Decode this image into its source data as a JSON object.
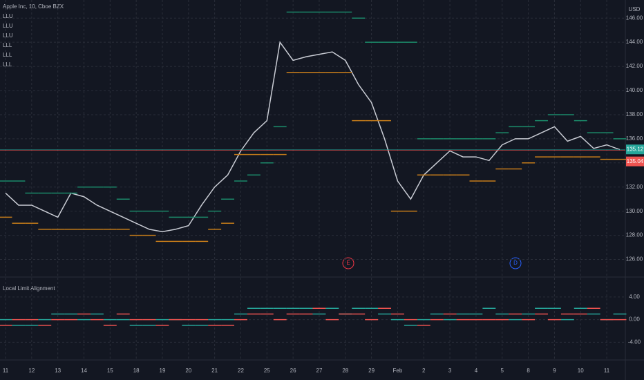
{
  "chart_data": {
    "type": "line",
    "title": "Apple Inc, 10, Cboe BZX",
    "currency": "USD",
    "study_labels": [
      "LLU",
      "LLU",
      "LLU",
      "LLL",
      "LLL",
      "LLL"
    ],
    "events": [
      "E",
      "D"
    ],
    "categories": [
      "11",
      null,
      "12",
      null,
      "13",
      null,
      "14",
      null,
      "15",
      null,
      "18",
      null,
      "19",
      null,
      "20",
      null,
      "21",
      null,
      "22",
      null,
      "25",
      null,
      "26",
      null,
      "27",
      null,
      "28",
      null,
      "29",
      null,
      "Feb",
      null,
      "2",
      null,
      "3",
      null,
      "4",
      null,
      "5",
      null,
      "8",
      null,
      "9",
      null,
      "10",
      null,
      "11",
      null
    ],
    "ylim": [
      124.6,
      147.5
    ],
    "yticks": [
      {
        "value": 126,
        "label": "126.00"
      },
      {
        "value": 128,
        "label": "128.00"
      },
      {
        "value": 130,
        "label": "130.00"
      },
      {
        "value": 132,
        "label": "132.00"
      },
      {
        "value": 134,
        "label": "134.00"
      },
      {
        "value": 136,
        "label": "136.00"
      },
      {
        "value": 138,
        "label": "138.00"
      },
      {
        "value": 140,
        "label": "140.00"
      },
      {
        "value": 142,
        "label": "142.00"
      },
      {
        "value": 144,
        "label": "144.00"
      },
      {
        "value": 146,
        "label": "146.00"
      }
    ],
    "grid": true,
    "price_tags": [
      {
        "value": 135.12,
        "label": "135.12",
        "color": "#26a69a"
      },
      {
        "value": 135.04,
        "label": "135.04",
        "color": "#ef5350"
      }
    ],
    "series": [
      {
        "color": "#c9ccd4",
        "values": [
          131.5,
          130.5,
          130.5,
          130.0,
          129.5,
          131.5,
          131.2,
          130.5,
          130.0,
          129.5,
          129.0,
          128.5,
          128.3,
          128.5,
          128.8,
          130.5,
          132.0,
          133.0,
          135.0,
          136.5,
          137.5,
          144.0,
          142.5,
          142.8,
          143.0,
          143.2,
          142.5,
          140.5,
          139.0,
          136.0,
          132.5,
          131.0,
          133.0,
          134.0,
          135.0,
          134.5,
          134.5,
          134.2,
          135.5,
          136.0,
          136.0,
          136.5,
          137.0,
          135.8,
          136.2,
          135.2,
          135.5,
          135.1
        ]
      },
      {
        "color": "#1b8a6a",
        "values": [
          132.5,
          132.5,
          131.5,
          131.5,
          131.5,
          131.5,
          132.0,
          132.0,
          132.0,
          131.0,
          130.0,
          130.0,
          130.0,
          129.5,
          129.5,
          129.5,
          130.0,
          131.0,
          132.5,
          133.0,
          134.0,
          137.0,
          146.5,
          146.5,
          146.5,
          146.5,
          146.5,
          146.0,
          144.0,
          144.0,
          144.0,
          144.0,
          136.0,
          136.0,
          136.0,
          136.0,
          136.0,
          136.0,
          136.5,
          137.0,
          137.0,
          137.5,
          138.0,
          138.0,
          137.5,
          136.5,
          136.5,
          136.0
        ]
      },
      {
        "color": "#c77d1a",
        "values": [
          129.5,
          129.0,
          129.0,
          128.5,
          128.5,
          128.5,
          128.5,
          128.5,
          128.5,
          128.5,
          128.0,
          128.0,
          127.5,
          127.5,
          127.5,
          127.5,
          128.5,
          129.0,
          134.7,
          134.7,
          134.7,
          134.7,
          141.5,
          141.5,
          141.5,
          141.5,
          141.5,
          137.5,
          137.5,
          137.5,
          130.0,
          130.0,
          133.0,
          133.0,
          133.0,
          133.0,
          132.5,
          132.5,
          133.5,
          133.5,
          134.0,
          134.5,
          134.5,
          134.5,
          134.5,
          134.5,
          134.3,
          134.3
        ]
      }
    ],
    "indicator": {
      "title": "Local Limit Alignment",
      "ylim": [
        -7.0,
        7.4
      ],
      "yticks": [
        {
          "value": 4,
          "label": "4.00"
        },
        {
          "value": 0,
          "label": "0.00"
        },
        {
          "value": -4,
          "label": "-4.00"
        }
      ],
      "series": [
        {
          "color": "#26a69a",
          "values": [
            0,
            -1,
            -1,
            0,
            1,
            1,
            0,
            1,
            0,
            0,
            -1,
            -1,
            0,
            0,
            -1,
            -1,
            0,
            0,
            1,
            2,
            2,
            2,
            2,
            2,
            1,
            2,
            1,
            2,
            2,
            1,
            0,
            -1,
            0,
            1,
            0,
            1,
            1,
            2,
            1,
            0,
            1,
            2,
            2,
            0,
            2,
            1,
            0,
            1
          ]
        },
        {
          "color": "#ef5350",
          "values": [
            -1,
            0,
            0,
            -1,
            0,
            0,
            1,
            0,
            -1,
            1,
            0,
            0,
            -1,
            0,
            0,
            0,
            -1,
            -1,
            0,
            1,
            1,
            0,
            1,
            1,
            2,
            0,
            1,
            1,
            0,
            2,
            1,
            0,
            -1,
            0,
            1,
            0,
            0,
            0,
            0,
            1,
            0,
            1,
            0,
            1,
            1,
            2,
            0,
            0
          ]
        }
      ]
    }
  }
}
